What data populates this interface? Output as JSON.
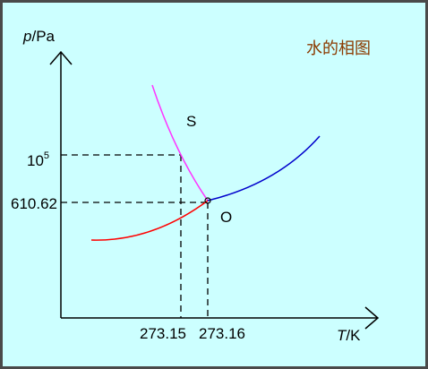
{
  "title": "水的相图",
  "y_axis": {
    "symbol": "p",
    "unit": "/Pa"
  },
  "x_axis": {
    "symbol": "T",
    "unit": "/K"
  },
  "y_labels": {
    "high": {
      "base": "10",
      "exponent": "5"
    },
    "triple": "610.62"
  },
  "x_labels": {
    "melting": "273.15",
    "triple": "273.16"
  },
  "points": {
    "s": "S",
    "o": "O"
  }
}
